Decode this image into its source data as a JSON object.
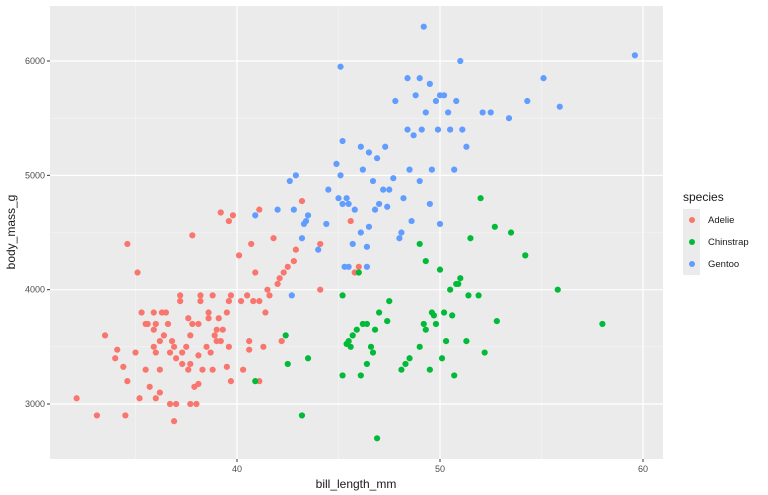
{
  "chart_data": {
    "type": "scatter",
    "title": "",
    "xlabel": "bill_length_mm",
    "ylabel": "body_mass_g",
    "x_ticks": [
      40,
      50,
      60
    ],
    "y_ticks": [
      3000,
      4000,
      5000,
      6000
    ],
    "xlim": [
      30.6,
      60.8
    ],
    "ylim": [
      2520,
      6480
    ],
    "grid": true,
    "legend_position": "right",
    "legend_title": "species",
    "series": [
      {
        "name": "Adelie",
        "color": "#F8766D",
        "points": [
          [
            32.1,
            3050
          ],
          [
            33.1,
            2900
          ],
          [
            33.5,
            3600
          ],
          [
            34.0,
            3400
          ],
          [
            34.1,
            3475
          ],
          [
            34.4,
            3325
          ],
          [
            34.5,
            2900
          ],
          [
            34.6,
            3200
          ],
          [
            34.6,
            4400
          ],
          [
            35.0,
            3450
          ],
          [
            35.1,
            4150
          ],
          [
            35.2,
            3050
          ],
          [
            35.3,
            3800
          ],
          [
            35.5,
            3700
          ],
          [
            35.5,
            3300
          ],
          [
            35.6,
            3700
          ],
          [
            35.7,
            3150
          ],
          [
            35.9,
            3800
          ],
          [
            35.9,
            3500
          ],
          [
            35.9,
            3650
          ],
          [
            36.0,
            3450
          ],
          [
            36.0,
            3050
          ],
          [
            36.0,
            3700
          ],
          [
            36.2,
            3550
          ],
          [
            36.2,
            3300
          ],
          [
            36.2,
            3100
          ],
          [
            36.3,
            3800
          ],
          [
            36.4,
            3600
          ],
          [
            36.5,
            3800
          ],
          [
            36.6,
            3700
          ],
          [
            36.7,
            3450
          ],
          [
            36.7,
            3000
          ],
          [
            36.8,
            3550
          ],
          [
            36.9,
            3500
          ],
          [
            36.9,
            2850
          ],
          [
            37.0,
            3400
          ],
          [
            37.0,
            3000
          ],
          [
            37.2,
            3900
          ],
          [
            37.2,
            3950
          ],
          [
            37.3,
            3350
          ],
          [
            37.3,
            3450
          ],
          [
            37.5,
            3500
          ],
          [
            37.6,
            3300
          ],
          [
            37.6,
            3750
          ],
          [
            37.7,
            3600
          ],
          [
            37.7,
            3350
          ],
          [
            37.7,
            3000
          ],
          [
            37.8,
            3700
          ],
          [
            37.8,
            4475
          ],
          [
            37.9,
            3150
          ],
          [
            38.0,
            3000
          ],
          [
            38.1,
            3700
          ],
          [
            38.1,
            3425
          ],
          [
            38.1,
            3175
          ],
          [
            38.2,
            3900
          ],
          [
            38.2,
            3950
          ],
          [
            38.3,
            3300
          ],
          [
            38.5,
            3500
          ],
          [
            38.6,
            3800
          ],
          [
            38.6,
            3750
          ],
          [
            38.7,
            3450
          ],
          [
            38.8,
            3950
          ],
          [
            38.8,
            3300
          ],
          [
            38.9,
            3600
          ],
          [
            39.0,
            3650
          ],
          [
            39.0,
            3550
          ],
          [
            39.1,
            3750
          ],
          [
            39.2,
            3550
          ],
          [
            39.2,
            4675
          ],
          [
            39.3,
            3650
          ],
          [
            39.5,
            3325
          ],
          [
            39.5,
            3800
          ],
          [
            39.6,
            3500
          ],
          [
            39.6,
            3900
          ],
          [
            39.6,
            4600
          ],
          [
            39.7,
            3950
          ],
          [
            39.7,
            3200
          ],
          [
            39.8,
            4650
          ],
          [
            40.1,
            4300
          ],
          [
            40.2,
            3900
          ],
          [
            40.3,
            3300
          ],
          [
            40.5,
            3950
          ],
          [
            40.6,
            3550
          ],
          [
            40.6,
            3475
          ],
          [
            40.7,
            4400
          ],
          [
            40.8,
            3900
          ],
          [
            40.9,
            4150
          ],
          [
            41.1,
            3200
          ],
          [
            41.1,
            3900
          ],
          [
            41.1,
            4700
          ],
          [
            41.3,
            3500
          ],
          [
            41.4,
            3800
          ],
          [
            41.5,
            4000
          ],
          [
            41.6,
            3950
          ],
          [
            41.8,
            4450
          ],
          [
            42.0,
            4050
          ],
          [
            42.1,
            4100
          ],
          [
            42.2,
            3550
          ],
          [
            42.3,
            4150
          ],
          [
            42.5,
            4200
          ],
          [
            42.8,
            4250
          ],
          [
            42.9,
            4350
          ],
          [
            43.2,
            4775
          ],
          [
            44.1,
            4000
          ],
          [
            44.1,
            4400
          ],
          [
            45.6,
            4600
          ],
          [
            45.8,
            4150
          ],
          [
            46.0,
            4200
          ]
        ]
      },
      {
        "name": "Chinstrap",
        "color": "#00BA38",
        "points": [
          [
            40.9,
            3200
          ],
          [
            42.4,
            3600
          ],
          [
            42.5,
            3350
          ],
          [
            43.2,
            2900
          ],
          [
            43.5,
            3400
          ],
          [
            45.2,
            3250
          ],
          [
            45.2,
            3950
          ],
          [
            45.4,
            3525
          ],
          [
            45.5,
            3550
          ],
          [
            45.6,
            3500
          ],
          [
            45.7,
            3600
          ],
          [
            45.9,
            3650
          ],
          [
            46.0,
            4150
          ],
          [
            46.1,
            3250
          ],
          [
            46.2,
            3700
          ],
          [
            46.4,
            3700
          ],
          [
            46.4,
            3350
          ],
          [
            46.6,
            3500
          ],
          [
            46.7,
            3450
          ],
          [
            46.8,
            3650
          ],
          [
            46.9,
            2700
          ],
          [
            47.0,
            3800
          ],
          [
            47.5,
            3900
          ],
          [
            48.1,
            3300
          ],
          [
            48.3,
            3350
          ],
          [
            48.5,
            3400
          ],
          [
            49.0,
            3500
          ],
          [
            49.2,
            3700
          ],
          [
            49.3,
            3650
          ],
          [
            49.5,
            3300
          ],
          [
            49.6,
            3800
          ],
          [
            49.7,
            3775
          ],
          [
            49.8,
            3700
          ],
          [
            50.1,
            3400
          ],
          [
            50.2,
            3800
          ],
          [
            50.3,
            3550
          ],
          [
            50.5,
            4000
          ],
          [
            50.6,
            3775
          ],
          [
            50.7,
            3250
          ],
          [
            50.8,
            4050
          ],
          [
            50.9,
            4050
          ],
          [
            51.0,
            4100
          ],
          [
            51.3,
            3550
          ],
          [
            51.4,
            3950
          ],
          [
            51.5,
            4450
          ],
          [
            51.9,
            3950
          ],
          [
            52.0,
            4800
          ],
          [
            52.2,
            3450
          ],
          [
            52.8,
            3725
          ],
          [
            53.5,
            4500
          ],
          [
            54.2,
            4300
          ],
          [
            55.8,
            4000
          ],
          [
            58.0,
            3700
          ],
          [
            52.7,
            4550
          ],
          [
            49.0,
            4400
          ],
          [
            50.0,
            4175
          ],
          [
            47.4,
            3725
          ],
          [
            49.3,
            4250
          ]
        ]
      },
      {
        "name": "Gentoo",
        "color": "#619CFF",
        "points": [
          [
            40.9,
            4650
          ],
          [
            42.0,
            4700
          ],
          [
            42.6,
            4950
          ],
          [
            42.7,
            3950
          ],
          [
            42.8,
            4700
          ],
          [
            42.9,
            5000
          ],
          [
            43.2,
            4450
          ],
          [
            43.3,
            4575
          ],
          [
            43.4,
            4600
          ],
          [
            43.5,
            4650
          ],
          [
            44.0,
            4350
          ],
          [
            44.4,
            4575
          ],
          [
            44.5,
            4875
          ],
          [
            44.9,
            5100
          ],
          [
            45.0,
            4800
          ],
          [
            45.1,
            5000
          ],
          [
            45.2,
            5300
          ],
          [
            45.2,
            4750
          ],
          [
            45.3,
            4200
          ],
          [
            45.4,
            4800
          ],
          [
            45.5,
            4750
          ],
          [
            45.5,
            4200
          ],
          [
            45.7,
            4400
          ],
          [
            45.8,
            4700
          ],
          [
            46.1,
            4500
          ],
          [
            46.2,
            5050
          ],
          [
            46.4,
            4375
          ],
          [
            46.4,
            4200
          ],
          [
            46.5,
            4550
          ],
          [
            46.5,
            5200
          ],
          [
            46.7,
            4950
          ],
          [
            46.8,
            4700
          ],
          [
            46.9,
            5150
          ],
          [
            47.2,
            4875
          ],
          [
            47.3,
            5250
          ],
          [
            47.4,
            4725
          ],
          [
            47.5,
            4875
          ],
          [
            47.7,
            4975
          ],
          [
            47.8,
            5650
          ],
          [
            48.1,
            4500
          ],
          [
            48.2,
            4800
          ],
          [
            48.4,
            5400
          ],
          [
            48.5,
            5050
          ],
          [
            48.6,
            4600
          ],
          [
            48.7,
            5350
          ],
          [
            48.8,
            5700
          ],
          [
            49.1,
            5400
          ],
          [
            49.2,
            6300
          ],
          [
            49.3,
            5550
          ],
          [
            49.5,
            5800
          ],
          [
            49.6,
            5050
          ],
          [
            49.8,
            5650
          ],
          [
            49.9,
            5400
          ],
          [
            50.0,
            5700
          ],
          [
            50.2,
            5700
          ],
          [
            50.4,
            5550
          ],
          [
            50.5,
            5400
          ],
          [
            50.7,
            5050
          ],
          [
            50.8,
            5650
          ],
          [
            51.1,
            5400
          ],
          [
            51.3,
            5250
          ],
          [
            52.1,
            5550
          ],
          [
            52.5,
            5550
          ],
          [
            53.4,
            5500
          ],
          [
            54.3,
            5650
          ],
          [
            55.1,
            5850
          ],
          [
            55.9,
            5600
          ],
          [
            59.6,
            6050
          ],
          [
            45.1,
            5950
          ],
          [
            49.0,
            5850
          ],
          [
            51.0,
            6000
          ],
          [
            48.4,
            5850
          ],
          [
            48.0,
            4450
          ],
          [
            49.0,
            4950
          ],
          [
            50.0,
            4575
          ],
          [
            49.5,
            4750
          ],
          [
            47.0,
            4750
          ],
          [
            46.1,
            5250
          ]
        ]
      }
    ]
  }
}
